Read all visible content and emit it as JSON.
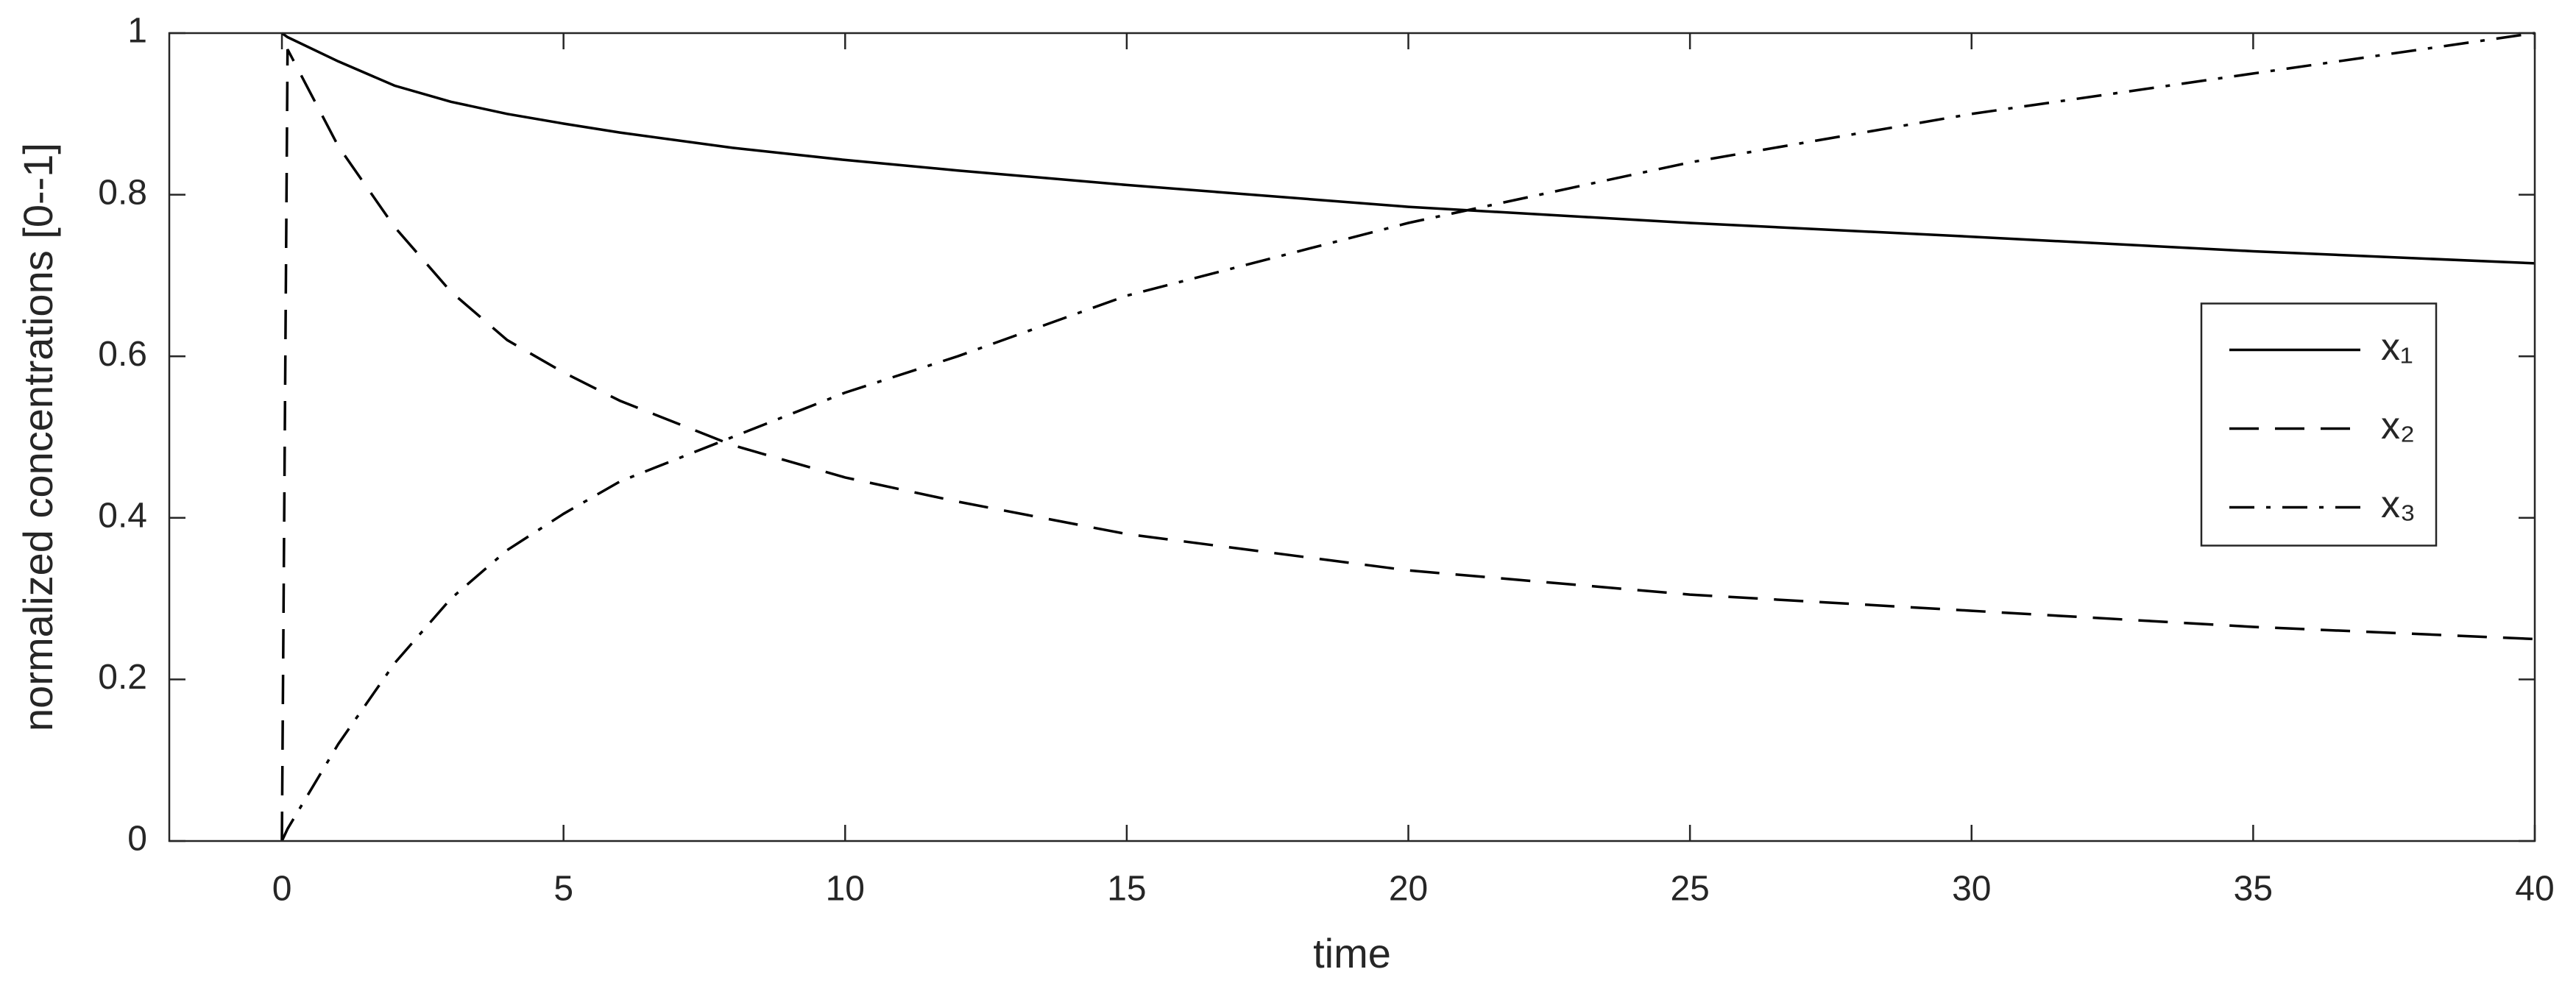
{
  "chart_data": {
    "type": "line",
    "x_label": "time",
    "y_label": "normalized concentrations [0--1]",
    "x": [
      0,
      0.1,
      1,
      2,
      3,
      4,
      5,
      6,
      8,
      10,
      12,
      15,
      20,
      25,
      30,
      35,
      40
    ],
    "series": [
      {
        "name": "x₁",
        "color": "#000000",
        "line_style": "solid",
        "values": [
          1,
          0.995,
          0.965,
          0.935,
          0.915,
          0.9,
          0.888,
          0.877,
          0.858,
          0.843,
          0.83,
          0.812,
          0.785,
          0.765,
          0.748,
          0.73,
          0.715
        ]
      },
      {
        "name": "x₂",
        "color": "#000000",
        "line_style": "dashed",
        "values": [
          0,
          0.98,
          0.86,
          0.76,
          0.68,
          0.62,
          0.58,
          0.545,
          0.49,
          0.45,
          0.42,
          0.38,
          0.335,
          0.305,
          0.285,
          0.265,
          0.25
        ]
      },
      {
        "name": "x₃",
        "color": "#000000",
        "line_style": "dashdot",
        "values": [
          0,
          0.015,
          0.12,
          0.22,
          0.3,
          0.36,
          0.405,
          0.445,
          0.5,
          0.555,
          0.6,
          0.675,
          0.765,
          0.84,
          0.9,
          0.95,
          1
        ]
      }
    ],
    "xlim": [
      -2,
      40
    ],
    "xticks": [
      0,
      5,
      10,
      15,
      20,
      25,
      30,
      35,
      40
    ],
    "ylim": [
      0,
      1
    ],
    "yticks": [
      0,
      0.2,
      0.4,
      0.6,
      0.8,
      1
    ],
    "grid": false,
    "legend": "right"
  }
}
